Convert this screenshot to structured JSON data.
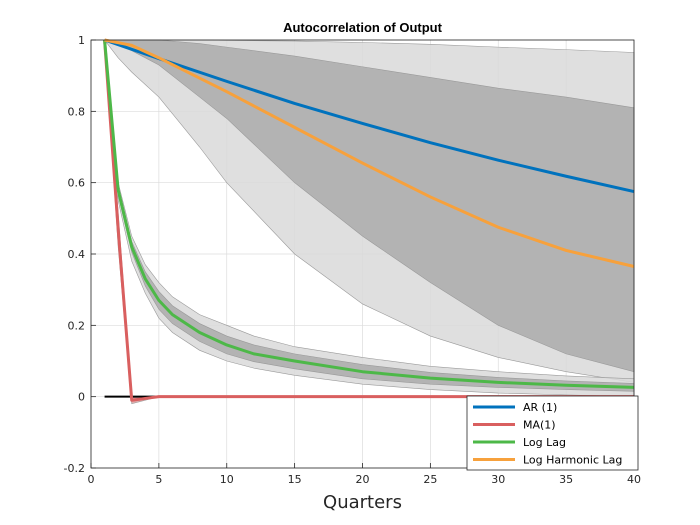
{
  "chart_data": {
    "type": "line",
    "title": "Autocorrelation of Output",
    "xlabel": "Quarters",
    "ylabel": "",
    "xlim": [
      0,
      40
    ],
    "ylim": [
      -0.2,
      1
    ],
    "xticks": [
      0,
      5,
      10,
      15,
      20,
      25,
      30,
      35,
      40
    ],
    "yticks": [
      -0.2,
      0,
      0.2,
      0.4,
      0.6,
      0.8,
      1
    ],
    "grid": true,
    "legend_position": "bottom-right",
    "series": [
      {
        "name": "AR (1)",
        "color": "#0072BD",
        "x": [
          1,
          5,
          10,
          15,
          20,
          25,
          30,
          35,
          40
        ],
        "values": [
          1.0,
          0.948,
          0.884,
          0.822,
          0.766,
          0.712,
          0.663,
          0.618,
          0.575
        ]
      },
      {
        "name": "MA(1)",
        "color": "#D95F5F",
        "x": [
          1,
          2,
          3,
          4,
          5,
          6,
          8,
          10,
          15,
          20,
          25,
          30,
          35,
          40
        ],
        "values": [
          1.0,
          0.47,
          -0.01,
          -0.005,
          0.0,
          0.0,
          0.0,
          0.0,
          0.0,
          0.0,
          0.0,
          0.0,
          0.0,
          0.0
        ]
      },
      {
        "name": "Log Lag",
        "color": "#4DB848",
        "x": [
          1,
          2,
          3,
          4,
          5,
          6,
          8,
          10,
          12,
          15,
          20,
          25,
          30,
          35,
          40
        ],
        "values": [
          1.0,
          0.58,
          0.42,
          0.33,
          0.27,
          0.23,
          0.18,
          0.145,
          0.12,
          0.1,
          0.07,
          0.052,
          0.04,
          0.032,
          0.026
        ]
      },
      {
        "name": "Log Harmonic Lag",
        "color": "#F7A13C",
        "x": [
          1,
          3,
          5,
          10,
          15,
          20,
          25,
          30,
          35,
          40
        ],
        "values": [
          1.0,
          0.985,
          0.95,
          0.855,
          0.755,
          0.655,
          0.56,
          0.475,
          0.41,
          0.365
        ]
      }
    ],
    "bands": [
      {
        "name": "outer-band",
        "color": "#D9D9D9",
        "x": [
          1,
          2,
          3,
          5,
          8,
          10,
          15,
          20,
          25,
          30,
          35,
          40
        ],
        "upper": [
          1.0,
          1.0,
          1.0,
          1.0,
          1.0,
          0.999,
          0.997,
          0.993,
          0.988,
          0.98,
          0.973,
          0.965
        ],
        "lower": [
          1.0,
          0.95,
          0.91,
          0.84,
          0.7,
          0.6,
          0.4,
          0.26,
          0.17,
          0.11,
          0.07,
          0.04
        ]
      },
      {
        "name": "inner-band",
        "color": "#ABABAB",
        "x": [
          1,
          3,
          5,
          8,
          10,
          15,
          20,
          25,
          30,
          35,
          40
        ],
        "upper": [
          1.0,
          1.0,
          1.0,
          0.99,
          0.98,
          0.955,
          0.925,
          0.895,
          0.865,
          0.84,
          0.81
        ],
        "lower": [
          1.0,
          0.97,
          0.93,
          0.84,
          0.78,
          0.6,
          0.45,
          0.32,
          0.2,
          0.12,
          0.07
        ]
      },
      {
        "name": "loglag-outer-band",
        "color": "#D9D9D9",
        "x": [
          1,
          2,
          3,
          4,
          5,
          6,
          8,
          10,
          12,
          15,
          20,
          25,
          30,
          35,
          40
        ],
        "upper": [
          1.0,
          0.6,
          0.45,
          0.37,
          0.32,
          0.28,
          0.23,
          0.2,
          0.17,
          0.14,
          0.11,
          0.085,
          0.07,
          0.058,
          0.05
        ],
        "lower": [
          1.0,
          0.55,
          0.38,
          0.29,
          0.22,
          0.18,
          0.13,
          0.1,
          0.08,
          0.06,
          0.035,
          0.02,
          0.01,
          0.005,
          0.0
        ]
      },
      {
        "name": "loglag-inner-band",
        "color": "#ABABAB",
        "x": [
          1,
          2,
          3,
          4,
          5,
          6,
          8,
          10,
          12,
          15,
          20,
          25,
          30,
          35,
          40
        ],
        "upper": [
          1.0,
          0.59,
          0.435,
          0.35,
          0.295,
          0.255,
          0.205,
          0.17,
          0.145,
          0.12,
          0.09,
          0.068,
          0.054,
          0.044,
          0.037
        ],
        "lower": [
          1.0,
          0.565,
          0.405,
          0.31,
          0.245,
          0.205,
          0.155,
          0.12,
          0.098,
          0.078,
          0.05,
          0.035,
          0.026,
          0.02,
          0.015
        ]
      },
      {
        "name": "ma-band",
        "color": "#D9A0A0",
        "x": [
          1,
          2,
          3,
          4,
          5
        ],
        "upper": [
          1.0,
          0.52,
          0.0,
          0.0,
          0.0
        ],
        "lower": [
          1.0,
          0.42,
          -0.02,
          -0.01,
          0.0
        ]
      }
    ],
    "reference_line": {
      "y": 0,
      "color": "#000000",
      "x_from": 1,
      "x_to": 40
    }
  }
}
